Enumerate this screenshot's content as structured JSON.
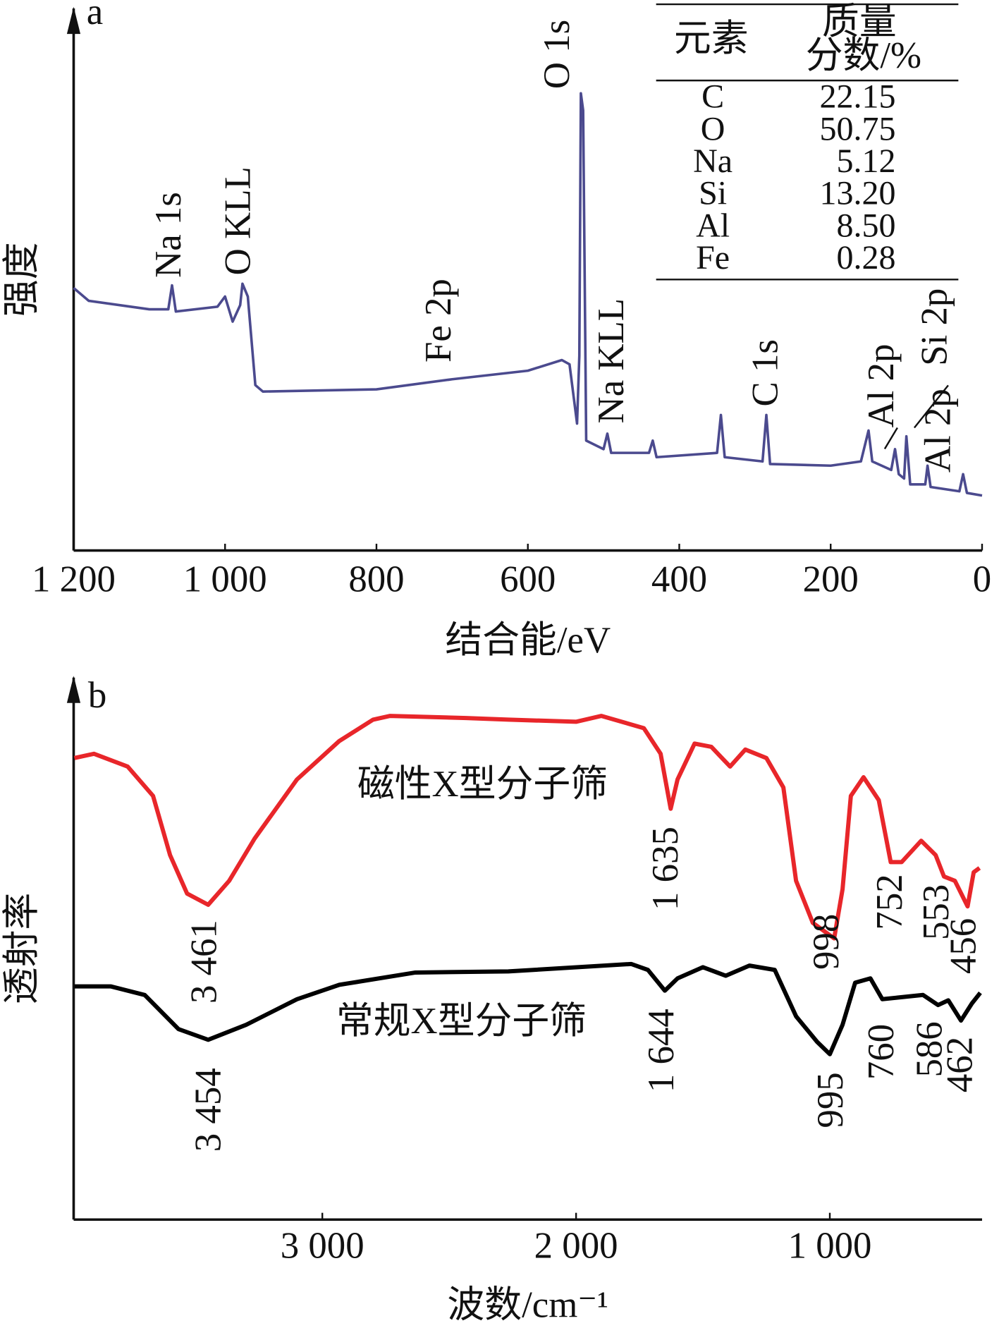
{
  "chart_data": [
    {
      "type": "line",
      "panel": "a",
      "y_label": "强度",
      "x_label": "结合能/eV",
      "xlim": [
        1200,
        0
      ],
      "ylim": [
        0,
        100
      ],
      "xticks": [
        {
          "value": 1200,
          "label": "1 200"
        },
        {
          "value": 1000,
          "label": "1 000"
        },
        800,
        600,
        400,
        200,
        0
      ],
      "series": [
        {
          "color": "#4b4a8e",
          "x": [
            1200,
            1180,
            1100,
            1075,
            1070,
            1065,
            1010,
            1000,
            990,
            980,
            977,
            970,
            960,
            950,
            800,
            700,
            600,
            555,
            545,
            535,
            532,
            530,
            527,
            523,
            500,
            495,
            490,
            440,
            435,
            430,
            350,
            345,
            340,
            290,
            285,
            280,
            200,
            160,
            150,
            145,
            120,
            115,
            110,
            103,
            100,
            95,
            75,
            72,
            68,
            30,
            25,
            20,
            0
          ],
          "values": [
            49.2,
            46.8,
            45.2,
            45.2,
            49.7,
            44.8,
            45.7,
            47.6,
            42.9,
            46,
            50,
            47.6,
            31,
            29.8,
            30.2,
            32.1,
            33.7,
            35.7,
            34.9,
            23.8,
            36.5,
            85.7,
            82.5,
            20.6,
            19,
            21.9,
            18.3,
            18.3,
            20.6,
            17.5,
            18.3,
            25.4,
            17.5,
            16.7,
            25.4,
            16.2,
            15.9,
            16.7,
            22.5,
            16.7,
            15.1,
            19,
            14.3,
            13.5,
            21.4,
            12.4,
            12.4,
            15.9,
            11.9,
            11.1,
            14.3,
            10.8,
            10.3
          ]
        }
      ],
      "annotations": [
        "Na 1s",
        "O KLL",
        "Fe 2p",
        "O 1s",
        "Na KLL",
        "C 1s",
        "Al 2p",
        "Si 2p",
        "Al 2p"
      ],
      "table": {
        "header": [
          "元素",
          "质量",
          "分数/%"
        ],
        "rows": [
          [
            "C",
            "22.15"
          ],
          [
            "O",
            "50.75"
          ],
          [
            "Na",
            "5.12"
          ],
          [
            "Si",
            "13.20"
          ],
          [
            "Al",
            "8.50"
          ],
          [
            "Fe",
            "0.28"
          ]
        ]
      }
    },
    {
      "type": "line",
      "panel": "b",
      "y_label": "透射率",
      "x_label": "波数/cm⁻¹",
      "xlim": [
        3980,
        400
      ],
      "ylim": [
        0,
        100
      ],
      "xticks": [
        {
          "value": 3000,
          "label": "3 000"
        },
        {
          "value": 2000,
          "label": "2 000"
        },
        {
          "value": 1000,
          "label": "1 000"
        }
      ],
      "series": [
        {
          "color": "#e8262a",
          "x": [
            3977,
            3900,
            3767,
            3667,
            3600,
            3533,
            3450,
            3367,
            3267,
            3100,
            2933,
            2800,
            2733,
            2433,
            2267,
            2000,
            1900,
            1733,
            1667,
            1627,
            1600,
            1533,
            1467,
            1393,
            1333,
            1250,
            1183,
            1133,
            1067,
            983,
            950,
            917,
            867,
            807,
            760,
            717,
            640,
            583,
            550,
            507,
            457,
            433,
            410
          ],
          "values": [
            86.5,
            87.3,
            84.9,
            79.4,
            68.3,
            61.1,
            59,
            63.5,
            71.4,
            82.5,
            89.7,
            93.7,
            94.4,
            94,
            93.7,
            93.3,
            94.4,
            92.1,
            87.3,
            77,
            82.5,
            89.2,
            88.6,
            84.9,
            88.1,
            86.5,
            81,
            63.5,
            55.6,
            52.7,
            61.9,
            79.4,
            82.9,
            78.6,
            67,
            67,
            71,
            68.3,
            64.3,
            63.5,
            58.7,
            65.1,
            65.9
          ]
        },
        {
          "color": "#000000",
          "x": [
            3977,
            3833,
            3700,
            3567,
            3450,
            3300,
            3100,
            2933,
            2633,
            2267,
            1783,
            1717,
            1650,
            1600,
            1500,
            1410,
            1317,
            1217,
            1133,
            1050,
            1000,
            950,
            900,
            840,
            793,
            733,
            633,
            573,
            533,
            483,
            440,
            407
          ],
          "values": [
            43.7,
            43.7,
            42.1,
            35.7,
            33.7,
            36.5,
            41.3,
            44,
            46.3,
            46.5,
            47.9,
            46.8,
            42.9,
            45.2,
            47.3,
            45.7,
            47.6,
            46.8,
            38.1,
            33.3,
            31,
            36.5,
            44.4,
            45.2,
            41.3,
            41.6,
            42.1,
            40.2,
            41.1,
            37.3,
            40.5,
            42.5
          ]
        }
      ],
      "annotations": [
        "磁性X型分子筛",
        "常规X型分子筛",
        "3 461",
        "1 635",
        "998",
        "752",
        "553",
        "456",
        "3 454",
        "1 644",
        "995",
        "760",
        "586",
        "462"
      ]
    }
  ]
}
